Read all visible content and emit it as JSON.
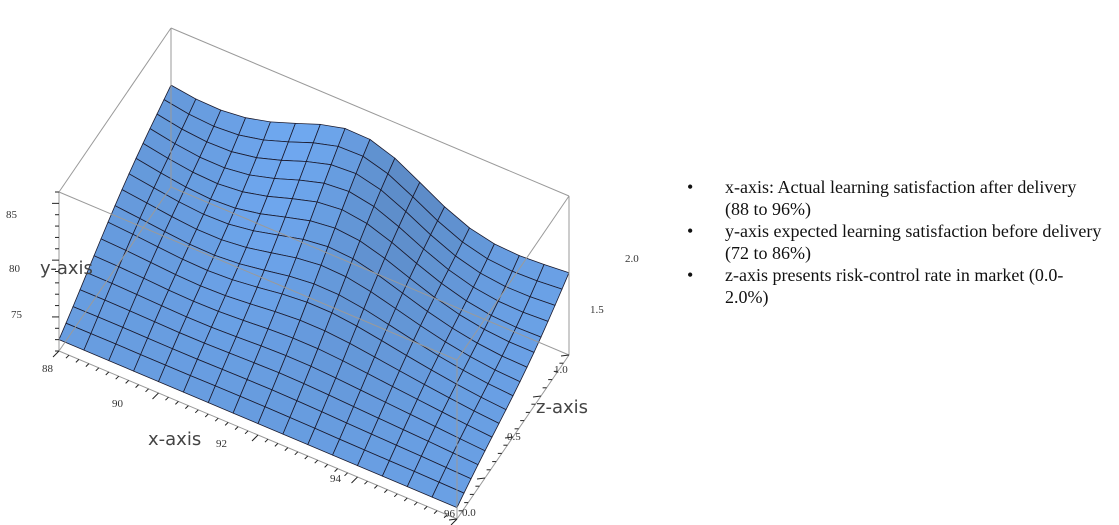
{
  "chart_data": {
    "type": "surface3d",
    "title": "",
    "x_axis": {
      "label": "x-axis",
      "range": [
        88,
        96
      ],
      "ticks": [
        "88",
        "90",
        "92",
        "94",
        "96"
      ]
    },
    "y_axis": {
      "label": "y-axis",
      "range": [
        72,
        86
      ],
      "ticks": [
        "75",
        "80",
        "85"
      ]
    },
    "z_axis": {
      "label": "z-axis",
      "range": [
        0.0,
        2.0
      ],
      "ticks": [
        "0.0",
        "0.5",
        "1.0",
        "1.5",
        "2.0"
      ]
    },
    "surface_color": "#6fa8f0",
    "mesh_color": "#1a1a2e",
    "approx_surface_height_at": {
      "x_88_z_0": 73,
      "x_96_z_0": 73,
      "x_88_z_2": 81,
      "x_92_z_2": 83,
      "x_96_z_2": 80
    }
  },
  "legend": {
    "items": [
      "x-axis: Actual learning satisfaction after delivery (88 to 96%)",
      "y-axis expected learning satisfaction before delivery (72 to 86%)",
      "z-axis presents risk-control rate in market (0.0-2.0%)"
    ]
  }
}
